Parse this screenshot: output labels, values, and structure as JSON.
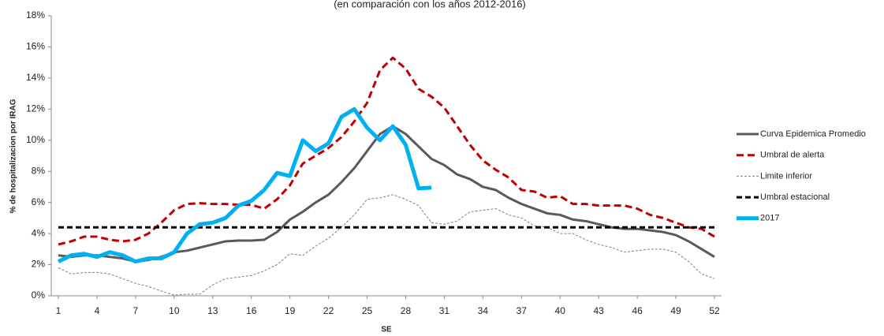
{
  "chart_data": {
    "type": "line",
    "title": "(en comparación con los años 2012-2016)",
    "xlabel": "SE",
    "ylabel": "% de hospitalizacion por IRAG",
    "x": [
      1,
      2,
      3,
      4,
      5,
      6,
      7,
      8,
      9,
      10,
      11,
      12,
      13,
      14,
      15,
      16,
      17,
      18,
      19,
      20,
      21,
      22,
      23,
      24,
      25,
      26,
      27,
      28,
      29,
      30,
      31,
      32,
      33,
      34,
      35,
      36,
      37,
      38,
      39,
      40,
      41,
      42,
      43,
      44,
      45,
      46,
      47,
      48,
      49,
      50,
      51,
      52
    ],
    "xlim": [
      1,
      52
    ],
    "xticks": [
      1,
      4,
      7,
      10,
      13,
      16,
      19,
      22,
      25,
      28,
      31,
      34,
      37,
      40,
      43,
      46,
      49,
      52
    ],
    "ylim": [
      0,
      18
    ],
    "yticks": [
      {
        "value": 0,
        "label": "0%"
      },
      {
        "value": 2,
        "label": "2%"
      },
      {
        "value": 4,
        "label": "4%"
      },
      {
        "value": 6,
        "label": "6%"
      },
      {
        "value": 8,
        "label": "8%"
      },
      {
        "value": 10,
        "label": "10%"
      },
      {
        "value": 12,
        "label": "12%"
      },
      {
        "value": 14,
        "label": "14%"
      },
      {
        "value": 16,
        "label": "16%"
      },
      {
        "value": 18,
        "label": "18%"
      }
    ],
    "legend": "right",
    "series": [
      {
        "name": "Curva Epidemica Promedio",
        "color": "#595959",
        "width": 3,
        "dash": "none",
        "values": [
          2.6,
          2.5,
          2.6,
          2.6,
          2.5,
          2.4,
          2.2,
          2.3,
          2.5,
          2.8,
          2.9,
          3.1,
          3.3,
          3.5,
          3.55,
          3.55,
          3.6,
          4.1,
          4.9,
          5.4,
          6.0,
          6.5,
          7.3,
          8.2,
          9.3,
          10.4,
          10.9,
          10.4,
          9.6,
          8.8,
          8.4,
          7.8,
          7.5,
          7.0,
          6.8,
          6.3,
          5.9,
          5.6,
          5.3,
          5.2,
          4.9,
          4.8,
          4.6,
          4.4,
          4.3,
          4.3,
          4.2,
          4.1,
          3.9,
          3.5,
          3.0,
          2.5
        ]
      },
      {
        "name": "Umbral de alerta",
        "color": "#c00000",
        "width": 3,
        "dash": "9,5",
        "values": [
          3.3,
          3.5,
          3.8,
          3.8,
          3.6,
          3.5,
          3.6,
          4.0,
          4.7,
          5.5,
          5.9,
          5.95,
          5.9,
          5.9,
          5.85,
          5.85,
          5.6,
          6.2,
          7.1,
          8.5,
          9.0,
          9.5,
          10.2,
          11.2,
          12.4,
          14.5,
          15.3,
          14.6,
          13.3,
          12.8,
          12.1,
          10.9,
          9.7,
          8.7,
          8.1,
          7.6,
          6.8,
          6.7,
          6.3,
          6.4,
          5.9,
          5.9,
          5.8,
          5.8,
          5.8,
          5.6,
          5.2,
          5.0,
          4.7,
          4.4,
          4.3,
          3.8
        ]
      },
      {
        "name": "Limite inferior",
        "color": "#7f7f7f",
        "width": 1,
        "dash": "3,2",
        "values": [
          1.8,
          1.4,
          1.5,
          1.5,
          1.4,
          1.1,
          0.8,
          0.6,
          0.3,
          0.05,
          0.1,
          0.1,
          0.7,
          1.1,
          1.2,
          1.3,
          1.6,
          2.0,
          2.7,
          2.6,
          3.2,
          3.7,
          4.4,
          5.2,
          6.2,
          6.3,
          6.5,
          6.2,
          5.8,
          4.7,
          4.6,
          4.8,
          5.4,
          5.5,
          5.6,
          5.2,
          5.0,
          4.5,
          4.4,
          4.0,
          4.0,
          3.6,
          3.3,
          3.1,
          2.8,
          2.9,
          3.0,
          3.0,
          2.8,
          2.2,
          1.4,
          1.1
        ]
      },
      {
        "name": "Umbral estacional",
        "color": "#000000",
        "width": 3,
        "dash": "7,4",
        "values": [
          4.4,
          4.4,
          4.4,
          4.4,
          4.4,
          4.4,
          4.4,
          4.4,
          4.4,
          4.4,
          4.4,
          4.4,
          4.4,
          4.4,
          4.4,
          4.4,
          4.4,
          4.4,
          4.4,
          4.4,
          4.4,
          4.4,
          4.4,
          4.4,
          4.4,
          4.4,
          4.4,
          4.4,
          4.4,
          4.4,
          4.4,
          4.4,
          4.4,
          4.4,
          4.4,
          4.4,
          4.4,
          4.4,
          4.4,
          4.4,
          4.4,
          4.4,
          4.4,
          4.4,
          4.4,
          4.4,
          4.4,
          4.4,
          4.4,
          4.4,
          4.4,
          4.4
        ]
      },
      {
        "name": "2017",
        "color": "#00b0f0",
        "width": 5,
        "dash": "none",
        "values": [
          2.2,
          2.6,
          2.7,
          2.5,
          2.8,
          2.6,
          2.2,
          2.4,
          2.4,
          2.8,
          4.0,
          4.6,
          4.7,
          5.0,
          5.8,
          6.1,
          6.8,
          7.9,
          7.7,
          10.0,
          9.3,
          9.8,
          11.5,
          12.0,
          10.8,
          10.0,
          10.9,
          9.7,
          6.9,
          6.95,
          null,
          null,
          null,
          null,
          null,
          null,
          null,
          null,
          null,
          null,
          null,
          null,
          null,
          null,
          null,
          null,
          null,
          null,
          null,
          null,
          null,
          null
        ]
      }
    ]
  }
}
